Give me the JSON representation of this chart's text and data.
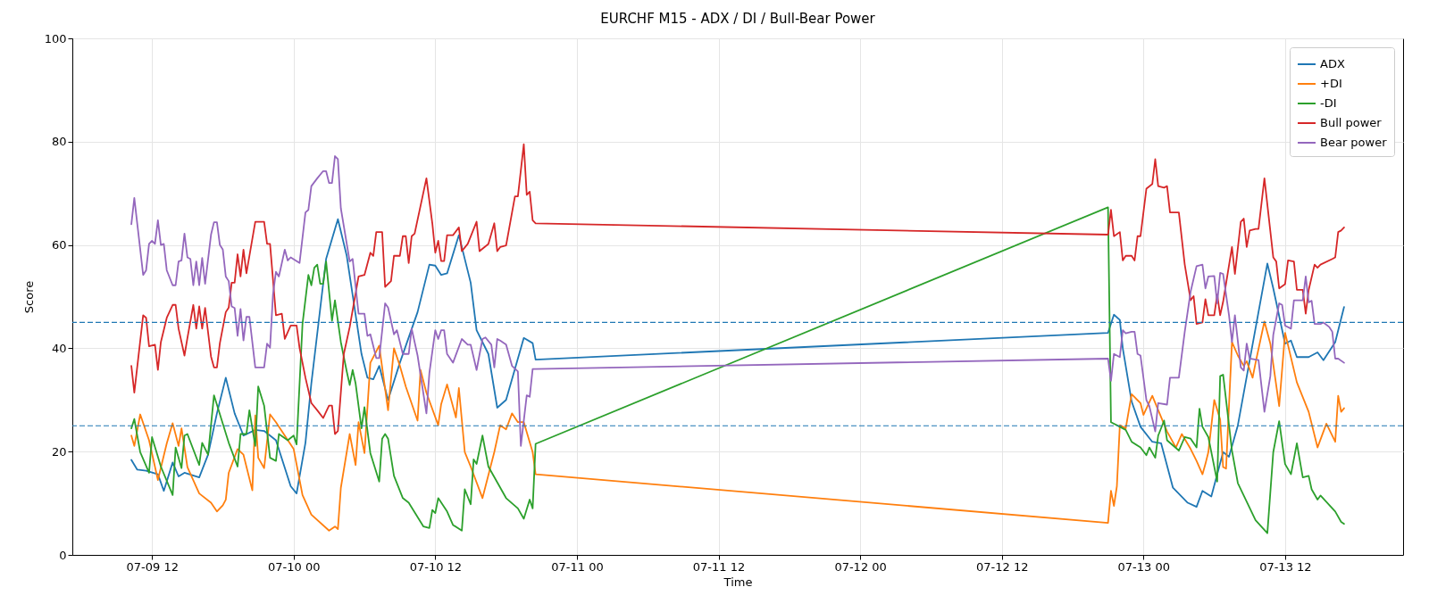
{
  "chart_data": {
    "type": "line",
    "title": "EURCHF M15 - ADX / DI / Bull-Bear Power",
    "xlabel": "Time",
    "ylabel": "Score",
    "xlim": [
      "--07-09T05:15",
      "--07-13T22:00"
    ],
    "ylim": [
      0,
      100
    ],
    "xticks": [
      {
        "value": "--07-09T12:00",
        "label": "07-09 12"
      },
      {
        "value": "--07-10T00:00",
        "label": "07-10 00"
      },
      {
        "value": "--07-10T12:00",
        "label": "07-10 12"
      },
      {
        "value": "--07-11T00:00",
        "label": "07-11 00"
      },
      {
        "value": "--07-11T12:00",
        "label": "07-11 12"
      },
      {
        "value": "--07-12T00:00",
        "label": "07-12 00"
      },
      {
        "value": "--07-12T12:00",
        "label": "07-12 12"
      },
      {
        "value": "--07-13T00:00",
        "label": "07-13 00"
      },
      {
        "value": "--07-13T12:00",
        "label": "07-13 12"
      }
    ],
    "yticks": [
      0,
      20,
      40,
      60,
      80,
      100
    ],
    "grid": true,
    "legend": "top right",
    "ref_lines": [
      {
        "axis": "y",
        "value": 45,
        "color": "#1f77b4",
        "line_style": "dashed"
      },
      {
        "axis": "y",
        "value": 25,
        "color": "#1f77b4",
        "line_style": "dashed"
      }
    ],
    "series": [
      {
        "name": "ADX",
        "color": "#1f77b4",
        "x": [
          "--07-09T10:15",
          "--07-09T10:45",
          "--07-09T11:30",
          "--07-09T12:30",
          "--07-09T13:00",
          "--07-09T13:45",
          "--07-09T14:15",
          "--07-09T14:45",
          "--07-09T16:00",
          "--07-09T16:45",
          "--07-09T17:30",
          "--07-09T18:15",
          "--07-09T19:00",
          "--07-09T19:45",
          "--07-09T20:45",
          "--07-09T21:30",
          "--07-09T22:30",
          "--07-09T23:45",
          "--07-10T00:15",
          "--07-10T01:00",
          "--07-10T01:30",
          "--07-10T02:45",
          "--07-10T03:45",
          "--07-10T04:30",
          "--07-10T05:45",
          "--07-10T06:15",
          "--07-10T06:45",
          "--07-10T07:15",
          "--07-10T08:00",
          "--07-10T09:00",
          "--07-10T10:30",
          "--07-10T11:30",
          "--07-10T12:00",
          "--07-10T12:30",
          "--07-10T13:00",
          "--07-10T14:00",
          "--07-10T15:00",
          "--07-10T15:30",
          "--07-10T16:30",
          "--07-10T17:15",
          "--07-10T18:00",
          "--07-10T19:30",
          "--07-10T20:15",
          "--07-10T20:30",
          "--07-12T21:00",
          "--07-12T21:30",
          "--07-12T22:00",
          "--07-12T22:15",
          "--07-12T23:00",
          "--07-12T23:45",
          "--07-13T00:45",
          "--07-13T01:30",
          "--07-13T02:30",
          "--07-13T03:45",
          "--07-13T04:30",
          "--07-13T05:00",
          "--07-13T05:45",
          "--07-13T06:45",
          "--07-13T07:15",
          "--07-13T08:00",
          "--07-13T10:30",
          "--07-13T11:00",
          "--07-13T12:00",
          "--07-13T12:30",
          "--07-13T13:00",
          "--07-13T14:00",
          "--07-13T14:45",
          "--07-13T15:15",
          "--07-13T16:15",
          "--07-13T17:00"
        ],
        "values": [
          18.4,
          16.5,
          16.3,
          15.6,
          12.4,
          17.9,
          15.2,
          15.9,
          15.0,
          19.4,
          27.4,
          34.3,
          27.4,
          23.1,
          24.2,
          24.0,
          22.2,
          13.3,
          11.9,
          21.7,
          33.2,
          57.3,
          65.0,
          57.9,
          38.9,
          34.3,
          34.0,
          36.6,
          30.0,
          37.2,
          47.0,
          56.2,
          56.0,
          54.2,
          54.5,
          61.9,
          52.7,
          43.5,
          38.9,
          28.5,
          30.0,
          42.0,
          41.0,
          37.8,
          43.0,
          46.5,
          45.5,
          40.0,
          29.7,
          24.8,
          21.9,
          21.6,
          13.0,
          10.1,
          9.3,
          12.4,
          11.3,
          19.9,
          19.0,
          25.1,
          56.4,
          51.6,
          40.9,
          41.5,
          38.3,
          38.3,
          39.2,
          37.7,
          41.2,
          48.0
        ]
      },
      {
        "name": "+DI",
        "color": "#ff7f0e",
        "x": [
          "--07-09T10:15",
          "--07-09T10:30",
          "--07-09T11:00",
          "--07-09T11:45",
          "--07-09T12:30",
          "--07-09T13:15",
          "--07-09T13:45",
          "--07-09T14:15",
          "--07-09T14:30",
          "--07-09T15:00",
          "--07-09T16:00",
          "--07-09T17:00",
          "--07-09T17:30",
          "--07-09T18:00",
          "--07-09T18:15",
          "--07-09T18:30",
          "--07-09T19:15",
          "--07-09T19:45",
          "--07-09T20:30",
          "--07-09T20:45",
          "--07-09T21:00",
          "--07-09T21:30",
          "--07-09T22:00",
          "--07-09T22:30",
          "--07-10T00:00",
          "--07-10T00:45",
          "--07-10T01:30",
          "--07-10T03:00",
          "--07-10T03:30",
          "--07-10T03:45",
          "--07-10T04:00",
          "--07-10T04:45",
          "--07-10T05:15",
          "--07-10T05:30",
          "--07-10T06:00",
          "--07-10T06:30",
          "--07-10T07:15",
          "--07-10T08:00",
          "--07-10T08:30",
          "--07-10T09:00",
          "--07-10T09:30",
          "--07-10T10:30",
          "--07-10T10:45",
          "--07-10T11:15",
          "--07-10T12:15",
          "--07-10T12:30",
          "--07-10T13:00",
          "--07-10T13:45",
          "--07-10T14:00",
          "--07-10T14:30",
          "--07-10T15:00",
          "--07-10T16:00",
          "--07-10T17:00",
          "--07-10T17:30",
          "--07-10T18:00",
          "--07-10T18:30",
          "--07-10T19:00",
          "--07-10T19:30",
          "--07-10T20:15",
          "--07-10T20:30",
          "--07-12T21:00",
          "--07-12T21:15",
          "--07-12T21:30",
          "--07-12T21:45",
          "--07-12T22:00",
          "--07-12T22:30",
          "--07-12T23:00",
          "--07-12T23:45",
          "--07-13T00:00",
          "--07-13T00:45",
          "--07-13T02:00",
          "--07-13T02:45",
          "--07-13T03:15",
          "--07-13T04:00",
          "--07-13T04:30",
          "--07-13T05:00",
          "--07-13T05:15",
          "--07-13T05:30",
          "--07-13T06:00",
          "--07-13T06:30",
          "--07-13T06:45",
          "--07-13T07:00",
          "--07-13T07:30",
          "--07-13T08:00",
          "--07-13T08:30",
          "--07-13T08:45",
          "--07-13T09:15",
          "--07-13T09:30",
          "--07-13T10:15",
          "--07-13T10:45",
          "--07-13T11:30",
          "--07-13T12:00",
          "--07-13T13:00",
          "--07-13T14:00",
          "--07-13T14:45",
          "--07-13T15:30",
          "--07-13T16:15",
          "--07-13T16:30",
          "--07-13T16:45",
          "--07-13T17:00"
        ],
        "values": [
          23.1,
          21.1,
          27.2,
          22.2,
          14.5,
          21.6,
          25.5,
          21.1,
          24.5,
          17.0,
          11.9,
          10.1,
          8.4,
          9.6,
          10.7,
          15.9,
          20.5,
          19.4,
          12.5,
          27.0,
          18.8,
          16.8,
          27.2,
          25.7,
          20.5,
          11.6,
          7.8,
          4.7,
          5.5,
          5.0,
          13.0,
          23.4,
          17.4,
          25.7,
          19.7,
          37.2,
          40.5,
          28.0,
          40.0,
          36.6,
          32.6,
          26.0,
          35.8,
          31.4,
          25.1,
          29.2,
          33.0,
          26.6,
          32.3,
          19.9,
          17.1,
          11.0,
          19.9,
          25.1,
          24.3,
          27.4,
          25.7,
          25.7,
          19.9,
          15.6,
          6.2,
          12.4,
          9.5,
          13.3,
          25.1,
          24.5,
          31.1,
          29.4,
          27.1,
          30.8,
          23.9,
          20.8,
          23.4,
          20.5,
          18.2,
          15.6,
          17.6,
          19.9,
          30.0,
          26.2,
          17.0,
          16.7,
          41.2,
          38.6,
          36.6,
          37.5,
          34.3,
          37.2,
          45.2,
          40.9,
          28.8,
          43.0,
          33.4,
          27.7,
          20.8,
          25.4,
          21.9,
          30.8,
          27.7,
          28.4
        ]
      },
      {
        "name": "-DI",
        "color": "#2ca02c",
        "x": [
          "--07-09T10:15",
          "--07-09T10:30",
          "--07-09T11:00",
          "--07-09T11:45",
          "--07-09T12:00",
          "--07-09T12:45",
          "--07-09T13:45",
          "--07-09T14:00",
          "--07-09T14:30",
          "--07-09T14:45",
          "--07-09T15:00",
          "--07-09T16:00",
          "--07-09T16:15",
          "--07-09T16:45",
          "--07-09T17:15",
          "--07-09T18:30",
          "--07-09T19:15",
          "--07-09T19:30",
          "--07-09T20:00",
          "--07-09T20:15",
          "--07-09T20:45",
          "--07-09T21:00",
          "--07-09T21:30",
          "--07-09T22:00",
          "--07-09T22:30",
          "--07-09T22:45",
          "--07-09T23:30",
          "--07-10T00:00",
          "--07-10T00:15",
          "--07-10T00:45",
          "--07-10T01:15",
          "--07-10T01:30",
          "--07-10T01:45",
          "--07-10T02:00",
          "--07-10T02:15",
          "--07-10T02:30",
          "--07-10T02:45",
          "--07-10T03:15",
          "--07-10T03:30",
          "--07-10T04:00",
          "--07-10T04:30",
          "--07-10T04:45",
          "--07-10T05:00",
          "--07-10T05:15",
          "--07-10T05:45",
          "--07-10T06:00",
          "--07-10T06:30",
          "--07-10T07:15",
          "--07-10T07:30",
          "--07-10T07:45",
          "--07-10T08:00",
          "--07-10T08:30",
          "--07-10T09:15",
          "--07-10T09:45",
          "--07-10T11:00",
          "--07-10T11:30",
          "--07-10T11:45",
          "--07-10T12:00",
          "--07-10T12:15",
          "--07-10T13:00",
          "--07-10T13:30",
          "--07-10T14:15",
          "--07-10T14:30",
          "--07-10T15:00",
          "--07-10T15:15",
          "--07-10T15:30",
          "--07-10T16:00",
          "--07-10T16:30",
          "--07-10T18:00",
          "--07-10T19:00",
          "--07-10T19:30",
          "--07-10T20:00",
          "--07-10T20:15",
          "--07-10T20:30",
          "--07-12T21:00",
          "--07-12T21:15",
          "--07-12T22:00",
          "--07-12T22:30",
          "--07-12T23:00",
          "--07-12T23:45",
          "--07-13T00:15",
          "--07-13T00:30",
          "--07-13T01:00",
          "--07-13T01:15",
          "--07-13T01:45",
          "--07-13T02:00",
          "--07-13T03:00",
          "--07-13T03:30",
          "--07-13T04:00",
          "--07-13T04:30",
          "--07-13T04:45",
          "--07-13T05:00",
          "--07-13T05:30",
          "--07-13T06:15",
          "--07-13T06:30",
          "--07-13T06:45",
          "--07-13T07:30",
          "--07-13T08:00",
          "--07-13T09:30",
          "--07-13T10:30",
          "--07-13T11:00",
          "--07-13T11:30",
          "--07-13T12:00",
          "--07-13T12:30",
          "--07-13T13:00",
          "--07-13T13:30",
          "--07-13T14:00",
          "--07-13T14:15",
          "--07-13T14:45",
          "--07-13T15:00",
          "--07-13T16:15",
          "--07-13T16:45",
          "--07-13T17:00"
        ],
        "values": [
          24.5,
          26.3,
          19.9,
          15.9,
          22.8,
          17.1,
          11.6,
          20.8,
          16.8,
          23.1,
          23.4,
          17.4,
          21.7,
          19.4,
          30.9,
          21.7,
          17.1,
          23.4,
          23.4,
          28.0,
          21.1,
          32.6,
          28.9,
          18.8,
          18.2,
          23.4,
          22.2,
          23.1,
          21.4,
          44.7,
          54.2,
          52.2,
          55.6,
          56.2,
          52.5,
          52.5,
          56.8,
          45.3,
          49.3,
          41.2,
          35.5,
          32.9,
          35.8,
          33.2,
          24.5,
          28.6,
          19.7,
          14.2,
          22.5,
          23.4,
          22.5,
          15.3,
          11.0,
          10.1,
          5.5,
          5.2,
          8.7,
          8.1,
          11.0,
          8.4,
          5.8,
          4.7,
          12.7,
          9.8,
          18.5,
          17.6,
          23.1,
          17.1,
          11.0,
          9.0,
          7.0,
          10.7,
          9.0,
          21.5,
          67.3,
          25.7,
          24.8,
          24.2,
          21.9,
          20.8,
          19.3,
          20.8,
          18.8,
          23.1,
          26.0,
          22.2,
          20.2,
          22.8,
          22.5,
          20.8,
          28.3,
          24.8,
          22.8,
          14.2,
          34.6,
          34.9,
          20.2,
          13.9,
          6.7,
          4.2,
          19.9,
          25.9,
          17.6,
          15.6,
          21.6,
          15.0,
          15.3,
          12.7,
          10.7,
          11.5,
          8.4,
          6.4,
          6.0
        ]
      },
      {
        "name": "Bull power",
        "color": "#d62728",
        "x": [
          "--07-09T10:15",
          "--07-09T10:30",
          "--07-09T11:15",
          "--07-09T11:30",
          "--07-09T11:45",
          "--07-09T12:15",
          "--07-09T12:30",
          "--07-09T12:45",
          "--07-09T13:15",
          "--07-09T13:45",
          "--07-09T14:00",
          "--07-09T14:15",
          "--07-09T14:45",
          "--07-09T15:00",
          "--07-09T15:30",
          "--07-09T15:45",
          "--07-09T16:00",
          "--07-09T16:15",
          "--07-09T16:30",
          "--07-09T17:00",
          "--07-09T17:15",
          "--07-09T17:30",
          "--07-09T17:45",
          "--07-09T18:15",
          "--07-09T18:30",
          "--07-09T18:45",
          "--07-09T19:00",
          "--07-09T19:15",
          "--07-09T19:30",
          "--07-09T19:45",
          "--07-09T20:00",
          "--07-09T20:45",
          "--07-09T21:30",
          "--07-09T21:45",
          "--07-09T22:00",
          "--07-09T22:30",
          "--07-09T23:00",
          "--07-09T23:15",
          "--07-09T23:45",
          "--07-10T00:15",
          "--07-10T00:30",
          "--07-10T01:00",
          "--07-10T01:30",
          "--07-10T02:00",
          "--07-10T02:30",
          "--07-10T03:00",
          "--07-10T03:15",
          "--07-10T03:30",
          "--07-10T03:45",
          "--07-10T04:15",
          "--07-10T04:45",
          "--07-10T05:30",
          "--07-10T06:00",
          "--07-10T06:30",
          "--07-10T06:45",
          "--07-10T07:00",
          "--07-10T07:30",
          "--07-10T07:45",
          "--07-10T08:15",
          "--07-10T08:30",
          "--07-10T09:00",
          "--07-10T09:15",
          "--07-10T09:30",
          "--07-10T09:45",
          "--07-10T10:00",
          "--07-10T10:15",
          "--07-10T11:15",
          "--07-10T11:45",
          "--07-10T12:00",
          "--07-10T12:15",
          "--07-10T12:30",
          "--07-10T12:45",
          "--07-10T13:00",
          "--07-10T13:30",
          "--07-10T14:00",
          "--07-10T14:15",
          "--07-10T14:45",
          "--07-10T15:30",
          "--07-10T15:45",
          "--07-10T16:30",
          "--07-10T17:00",
          "--07-10T17:15",
          "--07-10T17:30",
          "--07-10T18:00",
          "--07-10T18:45",
          "--07-10T19:00",
          "--07-10T19:30",
          "--07-10T19:45",
          "--07-10T20:00",
          "--07-10T20:15",
          "--07-10T20:30",
          "--07-12T21:00",
          "--07-12T21:15",
          "--07-12T21:30",
          "--07-12T22:00",
          "--07-12T22:15",
          "--07-12T22:30",
          "--07-12T23:00",
          "--07-12T23:15",
          "--07-12T23:30",
          "--07-12T23:45",
          "--07-13T00:15",
          "--07-13T00:45",
          "--07-13T01:00",
          "--07-13T01:15",
          "--07-13T01:45",
          "--07-13T02:00",
          "--07-13T02:15",
          "--07-13T03:00",
          "--07-13T03:30",
          "--07-13T04:00",
          "--07-13T04:15",
          "--07-13T04:30",
          "--07-13T05:00",
          "--07-13T05:15",
          "--07-13T05:30",
          "--07-13T06:00",
          "--07-13T06:15",
          "--07-13T06:30",
          "--07-13T06:45",
          "--07-13T07:30",
          "--07-13T07:45",
          "--07-13T08:15",
          "--07-13T08:30",
          "--07-13T08:45",
          "--07-13T09:00",
          "--07-13T09:30",
          "--07-13T09:45",
          "--07-13T10:15",
          "--07-13T11:00",
          "--07-13T11:15",
          "--07-13T11:30",
          "--07-13T12:00",
          "--07-13T12:15",
          "--07-13T12:45",
          "--07-13T13:00",
          "--07-13T13:30",
          "--07-13T13:45",
          "--07-13T14:00",
          "--07-13T14:30",
          "--07-13T14:45",
          "--07-13T15:00",
          "--07-13T16:00",
          "--07-13T16:15",
          "--07-13T16:30",
          "--07-13T16:45",
          "--07-13T17:00"
        ],
        "values": [
          36.6,
          31.4,
          46.4,
          45.9,
          40.4,
          40.7,
          35.8,
          41.2,
          45.9,
          48.4,
          48.4,
          43.8,
          38.6,
          42.0,
          48.4,
          43.8,
          48.1,
          43.8,
          47.8,
          38.4,
          36.3,
          36.3,
          41.0,
          47.0,
          47.9,
          52.7,
          52.7,
          58.2,
          53.9,
          59.1,
          54.5,
          64.5,
          64.5,
          60.2,
          60.2,
          46.4,
          46.7,
          41.8,
          44.4,
          44.4,
          40.1,
          34.3,
          29.4,
          28.0,
          26.5,
          28.9,
          28.9,
          23.4,
          24.0,
          38.9,
          44.1,
          53.9,
          54.2,
          58.5,
          57.9,
          62.5,
          62.5,
          51.9,
          53.0,
          57.9,
          57.9,
          61.7,
          61.7,
          56.5,
          61.7,
          62.2,
          72.9,
          64.2,
          58.5,
          60.8,
          56.9,
          56.9,
          61.9,
          61.9,
          63.4,
          58.8,
          60.2,
          64.5,
          58.8,
          60.2,
          64.2,
          58.8,
          59.6,
          59.9,
          69.4,
          69.4,
          79.5,
          69.7,
          70.3,
          64.8,
          64.2,
          62.0,
          66.8,
          61.7,
          62.5,
          57.0,
          57.9,
          57.9,
          57.0,
          61.7,
          61.7,
          70.9,
          71.8,
          76.6,
          71.4,
          71.1,
          71.4,
          66.3,
          66.3,
          56.2,
          49.3,
          50.1,
          44.7,
          45.0,
          49.5,
          46.4,
          46.4,
          50.4,
          46.4,
          49.0,
          59.6,
          54.4,
          64.5,
          65.1,
          59.6,
          62.8,
          63.1,
          63.1,
          72.9,
          57.6,
          56.8,
          51.6,
          52.4,
          57.0,
          56.8,
          51.3,
          51.3,
          46.7,
          51.3,
          56.2,
          55.6,
          56.2,
          57.3,
          57.6,
          62.5,
          62.8,
          63.4
        ]
      },
      {
        "name": "Bear power",
        "color": "#9467bd",
        "x": [
          "--07-09T10:15",
          "--07-09T10:30",
          "--07-09T11:15",
          "--07-09T11:30",
          "--07-09T11:45",
          "--07-09T12:00",
          "--07-09T12:15",
          "--07-09T12:30",
          "--07-09T12:45",
          "--07-09T13:00",
          "--07-09T13:15",
          "--07-09T13:45",
          "--07-09T14:00",
          "--07-09T14:15",
          "--07-09T14:30",
          "--07-09T14:45",
          "--07-09T15:00",
          "--07-09T15:15",
          "--07-09T15:30",
          "--07-09T15:45",
          "--07-09T16:00",
          "--07-09T16:15",
          "--07-09T16:30",
          "--07-09T17:00",
          "--07-09T17:15",
          "--07-09T17:30",
          "--07-09T17:45",
          "--07-09T18:00",
          "--07-09T18:15",
          "--07-09T18:30",
          "--07-09T18:45",
          "--07-09T19:00",
          "--07-09T19:15",
          "--07-09T19:30",
          "--07-09T19:45",
          "--07-09T20:00",
          "--07-09T20:15",
          "--07-09T20:45",
          "--07-09T21:30",
          "--07-09T21:45",
          "--07-09T22:00",
          "--07-09T22:15",
          "--07-09T22:30",
          "--07-09T22:45",
          "--07-09T23:15",
          "--07-09T23:30",
          "--07-09T23:45",
          "--07-10T00:30",
          "--07-10T01:00",
          "--07-10T01:15",
          "--07-10T01:30",
          "--07-10T02:00",
          "--07-10T02:30",
          "--07-10T02:45",
          "--07-10T03:00",
          "--07-10T03:15",
          "--07-10T03:30",
          "--07-10T03:45",
          "--07-10T04:00",
          "--07-10T04:45",
          "--07-10T05:00",
          "--07-10T05:30",
          "--07-10T06:00",
          "--07-10T06:15",
          "--07-10T06:30",
          "--07-10T07:00",
          "--07-10T07:15",
          "--07-10T07:45",
          "--07-10T08:00",
          "--07-10T08:30",
          "--07-10T08:45",
          "--07-10T09:15",
          "--07-10T09:45",
          "--07-10T10:00",
          "--07-10T10:30",
          "--07-10T11:15",
          "--07-10T11:30",
          "--07-10T12:00",
          "--07-10T12:15",
          "--07-10T12:30",
          "--07-10T12:45",
          "--07-10T13:00",
          "--07-10T13:30",
          "--07-10T14:15",
          "--07-10T14:45",
          "--07-10T15:00",
          "--07-10T15:30",
          "--07-10T16:00",
          "--07-10T16:15",
          "--07-10T16:45",
          "--07-10T17:00",
          "--07-10T17:15",
          "--07-10T17:30",
          "--07-10T18:00",
          "--07-10T18:30",
          "--07-10T19:00",
          "--07-10T19:15",
          "--07-10T19:45",
          "--07-10T20:00",
          "--07-10T20:15",
          "--07-10T20:30",
          "--07-12T21:00",
          "--07-12T21:15",
          "--07-12T21:30",
          "--07-12T22:00",
          "--07-12T22:15",
          "--07-12T22:30",
          "--07-12T23:00",
          "--07-12T23:15",
          "--07-12T23:30",
          "--07-12T23:45",
          "--07-13T00:15",
          "--07-13T00:30",
          "--07-13T01:00",
          "--07-13T01:15",
          "--07-13T02:00",
          "--07-13T02:15",
          "--07-13T03:00",
          "--07-13T03:30",
          "--07-13T04:00",
          "--07-13T04:30",
          "--07-13T05:00",
          "--07-13T05:15",
          "--07-13T05:30",
          "--07-13T06:00",
          "--07-13T06:15",
          "--07-13T06:30",
          "--07-13T06:45",
          "--07-13T07:15",
          "--07-13T07:30",
          "--07-13T07:45",
          "--07-13T08:15",
          "--07-13T08:30",
          "--07-13T08:45",
          "--07-13T09:00",
          "--07-13T09:45",
          "--07-13T10:15",
          "--07-13T10:45",
          "--07-13T11:00",
          "--07-13T11:30",
          "--07-13T11:45",
          "--07-13T12:00",
          "--07-13T12:30",
          "--07-13T12:45",
          "--07-13T13:30",
          "--07-13T13:45",
          "--07-13T14:00",
          "--07-13T14:15",
          "--07-13T14:30",
          "--07-13T15:00",
          "--07-13T15:15",
          "--07-13T15:45",
          "--07-13T16:00",
          "--07-13T16:15",
          "--07-13T16:30",
          "--07-13T17:00"
        ],
        "values": [
          64.0,
          69.1,
          54.2,
          55.1,
          60.2,
          60.8,
          60.2,
          64.8,
          60.0,
          60.2,
          55.1,
          52.2,
          52.2,
          56.8,
          57.0,
          62.2,
          57.6,
          57.3,
          52.2,
          56.8,
          52.2,
          57.5,
          52.5,
          62.0,
          64.4,
          64.4,
          60.0,
          59.1,
          53.9,
          53.0,
          48.1,
          47.8,
          42.4,
          47.6,
          41.5,
          46.1,
          46.1,
          36.3,
          36.3,
          40.9,
          40.1,
          50.4,
          54.8,
          53.9,
          59.1,
          57.0,
          57.6,
          56.5,
          66.3,
          66.8,
          71.4,
          72.9,
          74.3,
          74.3,
          72.0,
          72.0,
          77.2,
          76.6,
          67.1,
          56.8,
          57.3,
          46.7,
          46.7,
          42.4,
          42.7,
          38.1,
          38.1,
          48.7,
          47.9,
          42.7,
          43.5,
          38.9,
          38.9,
          43.8,
          38.6,
          27.4,
          35.2,
          43.5,
          41.8,
          43.5,
          43.5,
          38.9,
          37.2,
          41.8,
          40.7,
          40.7,
          35.8,
          41.8,
          42.1,
          40.7,
          36.3,
          41.8,
          41.5,
          40.7,
          36.6,
          35.5,
          21.1,
          30.9,
          30.6,
          36.0,
          36.0,
          38.0,
          33.7,
          38.9,
          38.3,
          43.5,
          42.9,
          43.2,
          43.2,
          38.9,
          38.6,
          30.0,
          28.8,
          23.9,
          29.4,
          29.1,
          34.3,
          34.3,
          43.2,
          51.0,
          55.9,
          56.2,
          51.6,
          53.9,
          54.0,
          48.7,
          54.6,
          54.4,
          46.4,
          41.2,
          46.4,
          36.3,
          35.7,
          40.9,
          38.0,
          37.7,
          27.7,
          34.6,
          42.6,
          48.7,
          48.4,
          44.4,
          43.8,
          49.3,
          49.3,
          53.9,
          48.9,
          49.2,
          44.7,
          44.7,
          45.0,
          44.1,
          43.2,
          38.0,
          38.0,
          37.2
        ]
      }
    ]
  }
}
